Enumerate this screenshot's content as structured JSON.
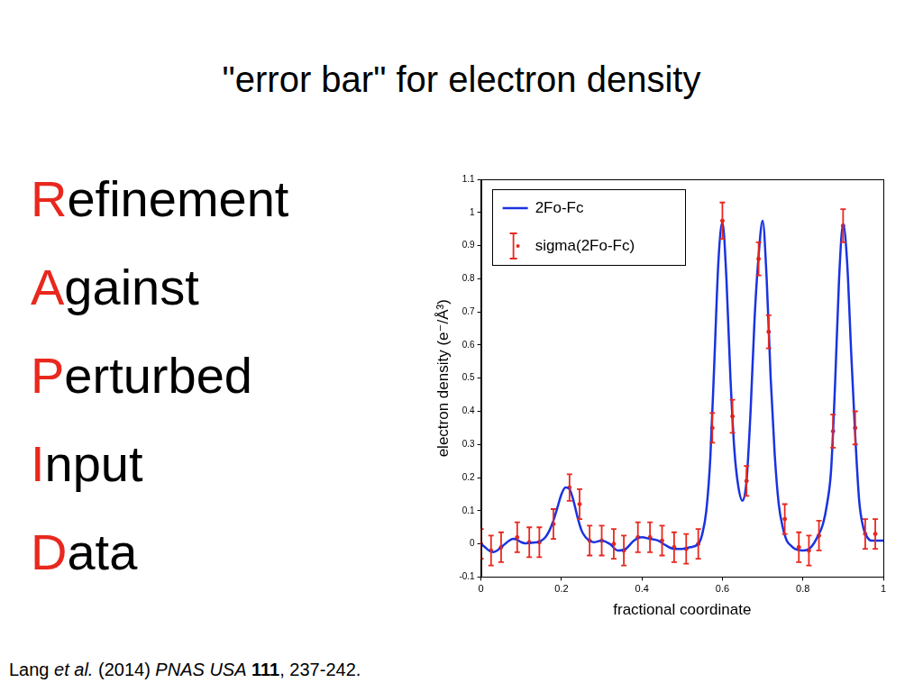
{
  "slide": {
    "title": "\"error bar\" for electron density",
    "acronym": {
      "lines": [
        "Refinement",
        "Against",
        "Perturbed",
        "Input",
        "Data"
      ],
      "color": "#e8281e"
    },
    "citation": [
      {
        "text": "Lang "
      },
      {
        "text": "et al.",
        "italic": true
      },
      {
        "text": " (2014) "
      },
      {
        "text": "PNAS USA",
        "italic": true
      },
      {
        "text": " "
      },
      {
        "text": "111",
        "bold": true
      },
      {
        "text": ", 237-242."
      }
    ]
  },
  "chart_data": {
    "type": "line",
    "xlabel": "fractional coordinate",
    "ylabel": "electron density (e⁻/Å³)",
    "xlim": [
      0,
      1
    ],
    "xticks": [
      0,
      0.2,
      0.4,
      0.6,
      0.8,
      1
    ],
    "ylim": [
      -0.1,
      1.1
    ],
    "yticks": [
      -0.1,
      0,
      0.1,
      0.2,
      0.3,
      0.4,
      0.5,
      0.6,
      0.7,
      0.8,
      0.9,
      1,
      1.1
    ],
    "grid": false,
    "legend": "upper left",
    "series": [
      {
        "name": "2Fo-Fc",
        "type": "line",
        "color": "#1a33e0",
        "marker": "none",
        "line_style": "solid",
        "x": [
          0,
          0.01,
          0.02,
          0.03,
          0.04,
          0.05,
          0.06,
          0.07,
          0.08,
          0.09,
          0.1,
          0.11,
          0.12,
          0.13,
          0.14,
          0.15,
          0.16,
          0.17,
          0.18,
          0.19,
          0.2,
          0.21,
          0.22,
          0.23,
          0.24,
          0.25,
          0.26,
          0.27,
          0.28,
          0.3,
          0.32,
          0.34,
          0.36,
          0.38,
          0.4,
          0.42,
          0.44,
          0.46,
          0.48,
          0.5,
          0.52,
          0.54,
          0.55,
          0.56,
          0.57,
          0.58,
          0.59,
          0.6,
          0.61,
          0.62,
          0.63,
          0.64,
          0.65,
          0.66,
          0.67,
          0.68,
          0.69,
          0.7,
          0.71,
          0.72,
          0.73,
          0.74,
          0.75,
          0.76,
          0.77,
          0.78,
          0.8,
          0.82,
          0.84,
          0.85,
          0.86,
          0.87,
          0.88,
          0.89,
          0.9,
          0.91,
          0.92,
          0.93,
          0.94,
          0.95,
          0.96,
          0.97,
          0.98,
          1
        ],
        "values": [
          0,
          -0.01,
          -0.02,
          -0.025,
          -0.02,
          -0.01,
          0,
          0.01,
          0.015,
          0.012,
          0.005,
          0.002,
          0.003,
          0.004,
          0.005,
          0.01,
          0.02,
          0.04,
          0.07,
          0.11,
          0.15,
          0.17,
          0.165,
          0.13,
          0.08,
          0.04,
          0.02,
          0.01,
          0.005,
          0.01,
          0,
          -0.02,
          -0.015,
          0.01,
          0.02,
          0.015,
          0.01,
          -0.005,
          -0.015,
          -0.015,
          -0.01,
          0,
          0.03,
          0.1,
          0.26,
          0.55,
          0.85,
          0.97,
          0.8,
          0.5,
          0.28,
          0.17,
          0.13,
          0.19,
          0.4,
          0.68,
          0.87,
          0.975,
          0.8,
          0.5,
          0.27,
          0.12,
          0.05,
          0.01,
          -0.005,
          -0.015,
          -0.02,
          -0.01,
          0.03,
          0.06,
          0.12,
          0.22,
          0.48,
          0.8,
          0.965,
          0.85,
          0.58,
          0.33,
          0.13,
          0.05,
          0.02,
          0.01,
          0.01,
          0.01
        ]
      },
      {
        "name": "sigma(2Fo-Fc)",
        "type": "scatter",
        "color": "#e8281e",
        "marker": "circle",
        "x": [
          0,
          0.025,
          0.05,
          0.09,
          0.12,
          0.145,
          0.18,
          0.22,
          0.245,
          0.27,
          0.3,
          0.33,
          0.355,
          0.39,
          0.42,
          0.45,
          0.48,
          0.51,
          0.54,
          0.575,
          0.6,
          0.625,
          0.66,
          0.69,
          0.715,
          0.755,
          0.79,
          0.815,
          0.84,
          0.875,
          0.9,
          0.93,
          0.955,
          0.98
        ],
        "values": [
          0,
          -0.02,
          -0.01,
          0.02,
          0.005,
          0.005,
          0.06,
          0.17,
          0.12,
          0.01,
          0.01,
          0,
          -0.02,
          0.02,
          0.02,
          0.01,
          -0.01,
          -0.015,
          0,
          0.35,
          0.975,
          0.385,
          0.19,
          0.86,
          0.64,
          0.075,
          -0.01,
          -0.02,
          0.025,
          0.34,
          0.96,
          0.35,
          0.03,
          0.03
        ],
        "errors": [
          0.045,
          0.045,
          0.045,
          0.045,
          0.045,
          0.045,
          0.045,
          0.04,
          0.045,
          0.045,
          0.045,
          0.045,
          0.045,
          0.045,
          0.045,
          0.045,
          0.045,
          0.045,
          0.045,
          0.045,
          0.055,
          0.05,
          0.045,
          0.05,
          0.05,
          0.045,
          0.045,
          0.045,
          0.045,
          0.05,
          0.05,
          0.05,
          0.045,
          0.045
        ]
      }
    ]
  }
}
